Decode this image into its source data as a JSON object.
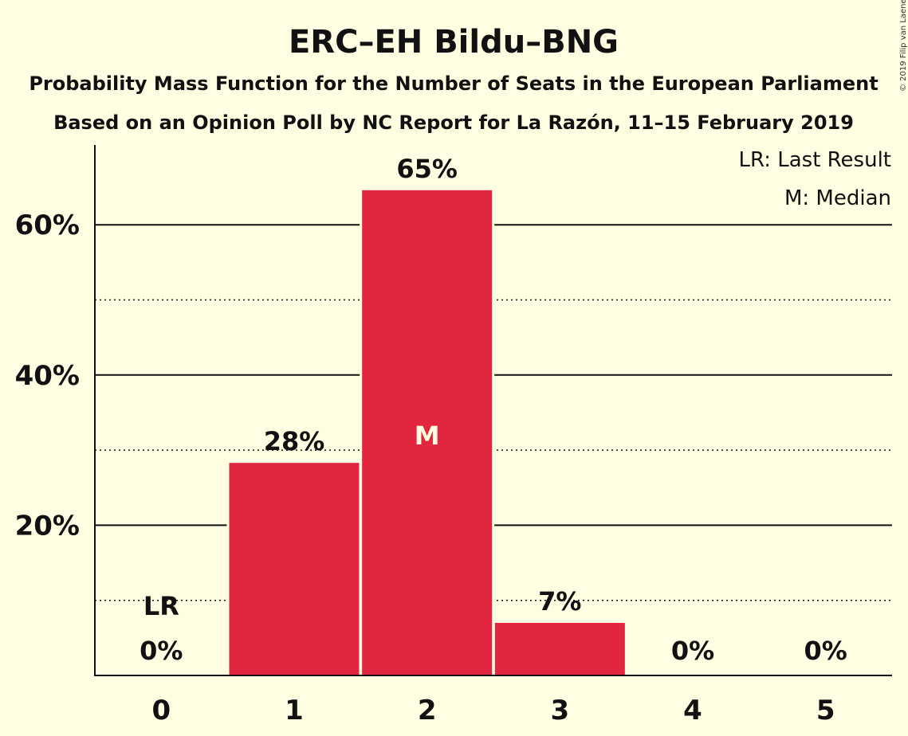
{
  "chart_data": {
    "type": "bar",
    "title": "ERC–EH Bildu–BNG",
    "subtitle_line1": "Probability Mass Function for the Number of Seats in the European Parliament",
    "subtitle_line2": "Based on an Opinion Poll by NC Report for La Razón, 11–15 February 2019",
    "categories": [
      "0",
      "1",
      "2",
      "3",
      "4",
      "5"
    ],
    "values": [
      0,
      28.3,
      64.6,
      7.0,
      0,
      0
    ],
    "value_labels": [
      "0%",
      "28%",
      "65%",
      "7%",
      "0%",
      "0%"
    ],
    "ylim": [
      0,
      70
    ],
    "y_major_ticks": [
      20,
      40,
      60
    ],
    "y_major_tick_labels": [
      "20%",
      "40%",
      "60%"
    ],
    "y_minor_gridlines": [
      10,
      30,
      50
    ],
    "last_result_category": "0",
    "last_result_label": "LR",
    "median_category": "2",
    "median_label": "M",
    "legend": {
      "placement": "top-right",
      "entries": [
        "LR: Last Result",
        "M: Median"
      ]
    },
    "copyright": "© 2019 Filip van Laenen",
    "colors": {
      "background": "#fffde2",
      "bar": "#e2263f",
      "axis": "#111111",
      "median_text": "#fffde2"
    }
  }
}
